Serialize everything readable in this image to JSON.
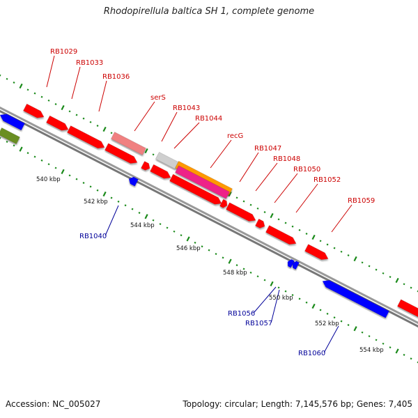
{
  "title": "Rhodopirellula baltica SH 1, complete genome",
  "footer": {
    "accession": "Accession: NC_005027",
    "summary": "Topology: circular; Length: 7,145,576 bp; Genes: 7,405"
  },
  "scale_labels": [
    "540 kbp",
    "542 kbp",
    "544 kbp",
    "546 kbp",
    "548 kbp",
    "550 kbp",
    "552 kbp",
    "554 kbp"
  ],
  "genes_forward": [
    "RB1029",
    "RB1033",
    "RB1036",
    "serS",
    "RB1043",
    "RB1044",
    "recG",
    "RB1047",
    "RB1048",
    "RB1050",
    "RB1052",
    "RB1059"
  ],
  "genes_reverse": [
    "RB1040",
    "RB1056",
    "RB1057",
    "RB1060"
  ],
  "colors": {
    "forward_cds": "#ff0000",
    "reverse_cds": "#0000ff",
    "forward_label": "#cc0000",
    "reverse_label": "#000099",
    "trna": "#f08080",
    "misc_grey": "#cfcfcf",
    "orange": "#ff9900",
    "magenta": "#ee2288",
    "olive": "#6b8e23",
    "backbone": "#8a8a8a",
    "ticks": "#1a8a1a"
  }
}
